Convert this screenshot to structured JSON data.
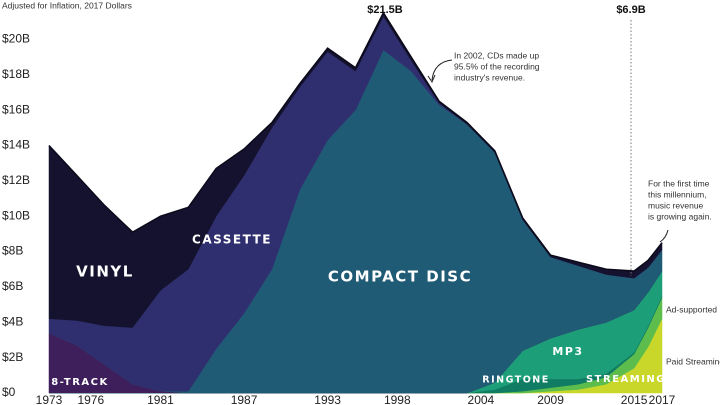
{
  "chart_data": {
    "type": "stacked_area",
    "subtitle": "Adjusted for Inflation, 2017 Dollars",
    "x": [
      1973,
      1975,
      1977,
      1979,
      1981,
      1983,
      1985,
      1987,
      1989,
      1991,
      1993,
      1995,
      1997,
      1999,
      2001,
      2003,
      2005,
      2007,
      2009,
      2011,
      2013,
      2015,
      2016,
      2017
    ],
    "series": [
      {
        "name": "Paid Streaming",
        "color": "#c9d72b",
        "values": [
          0,
          0,
          0,
          0,
          0,
          0,
          0,
          0,
          0,
          0,
          0,
          0,
          0,
          0,
          0,
          0,
          0,
          0,
          0.1,
          0.2,
          0.5,
          1.4,
          2.6,
          4.2
        ]
      },
      {
        "name": "Ad-supported",
        "color": "#5cbd4c",
        "values": [
          0,
          0,
          0,
          0,
          0,
          0,
          0,
          0,
          0,
          0,
          0,
          0,
          0,
          0,
          0,
          0,
          0,
          0.1,
          0.2,
          0.3,
          0.4,
          0.8,
          1.1,
          1.2
        ]
      },
      {
        "name": "RINGTONE",
        "color": "#0f7c63",
        "values": [
          0,
          0,
          0,
          0,
          0,
          0,
          0,
          0,
          0,
          0,
          0,
          0,
          0,
          0,
          0,
          0,
          0.2,
          0.7,
          0.5,
          0.3,
          0.2,
          0.1,
          0.1,
          0.1
        ]
      },
      {
        "name": "MP3",
        "color": "#1c9f78",
        "values": [
          0,
          0,
          0,
          0,
          0,
          0,
          0,
          0,
          0,
          0,
          0,
          0,
          0,
          0,
          0,
          0,
          0.4,
          1.6,
          2.3,
          2.8,
          2.9,
          2.4,
          1.9,
          1.4
        ]
      },
      {
        "name": "8-TRACK",
        "color": "#3e1f5c",
        "values": [
          3.4,
          2.7,
          1.6,
          0.5,
          0.1,
          0,
          0,
          0,
          0,
          0,
          0,
          0,
          0,
          0,
          0,
          0,
          0,
          0,
          0,
          0,
          0,
          0,
          0,
          0
        ]
      },
      {
        "name": "COMPACT DISC",
        "color": "#1f5b75",
        "values": [
          0,
          0,
          0,
          0,
          0,
          0.1,
          2.5,
          4.5,
          7.0,
          11.5,
          14.3,
          16.0,
          19.4,
          18.2,
          16.3,
          15.2,
          13.0,
          7.4,
          4.6,
          3.6,
          2.7,
          1.8,
          1.4,
          1.2
        ]
      },
      {
        "name": "CASSETTE",
        "color": "#2f2f70",
        "values": [
          0.8,
          1.4,
          2.2,
          3.2,
          5.7,
          6.9,
          7.5,
          7.8,
          8.0,
          5.8,
          5.0,
          2.2,
          1.9,
          0.6,
          0.1,
          0,
          0,
          0,
          0,
          0,
          0,
          0,
          0,
          0
        ]
      },
      {
        "name": "VINYL",
        "color": "#15122f",
        "values": [
          9.8,
          8.2,
          6.8,
          5.4,
          4.2,
          3.5,
          2.7,
          1.5,
          0.3,
          0.2,
          0.2,
          0.2,
          0.2,
          0.2,
          0.1,
          0.1,
          0.1,
          0.1,
          0.1,
          0.2,
          0.3,
          0.4,
          0.4,
          0.4
        ]
      }
    ],
    "annotations": [
      "$21.5B",
      "$6.9B",
      "In 2002, CDs made up",
      "95.5% of the recording",
      "industry's revenue.",
      "For the first time",
      "this millennium,",
      "music revenue",
      "is growing again.",
      "STREAMING"
    ],
    "xlim": [
      1973,
      2017
    ],
    "xticks": [
      1973,
      1976,
      1981,
      1987,
      1993,
      1998,
      2004,
      2009,
      2015,
      2017
    ],
    "ylim": [
      0,
      22
    ],
    "yticks": [
      {
        "value": 0,
        "label": "$0"
      },
      {
        "value": 2,
        "label": "$2B"
      },
      {
        "value": 4,
        "label": "$4B"
      },
      {
        "value": 6,
        "label": "$6B"
      },
      {
        "value": 8,
        "label": "$8B"
      },
      {
        "value": 10,
        "label": "$10B"
      },
      {
        "value": 12,
        "label": "$12B"
      },
      {
        "value": 14,
        "label": "$14B"
      },
      {
        "value": 16,
        "label": "$16B"
      },
      {
        "value": 18,
        "label": "$18B"
      },
      {
        "value": 20,
        "label": "$20B"
      }
    ],
    "grid": false
  }
}
